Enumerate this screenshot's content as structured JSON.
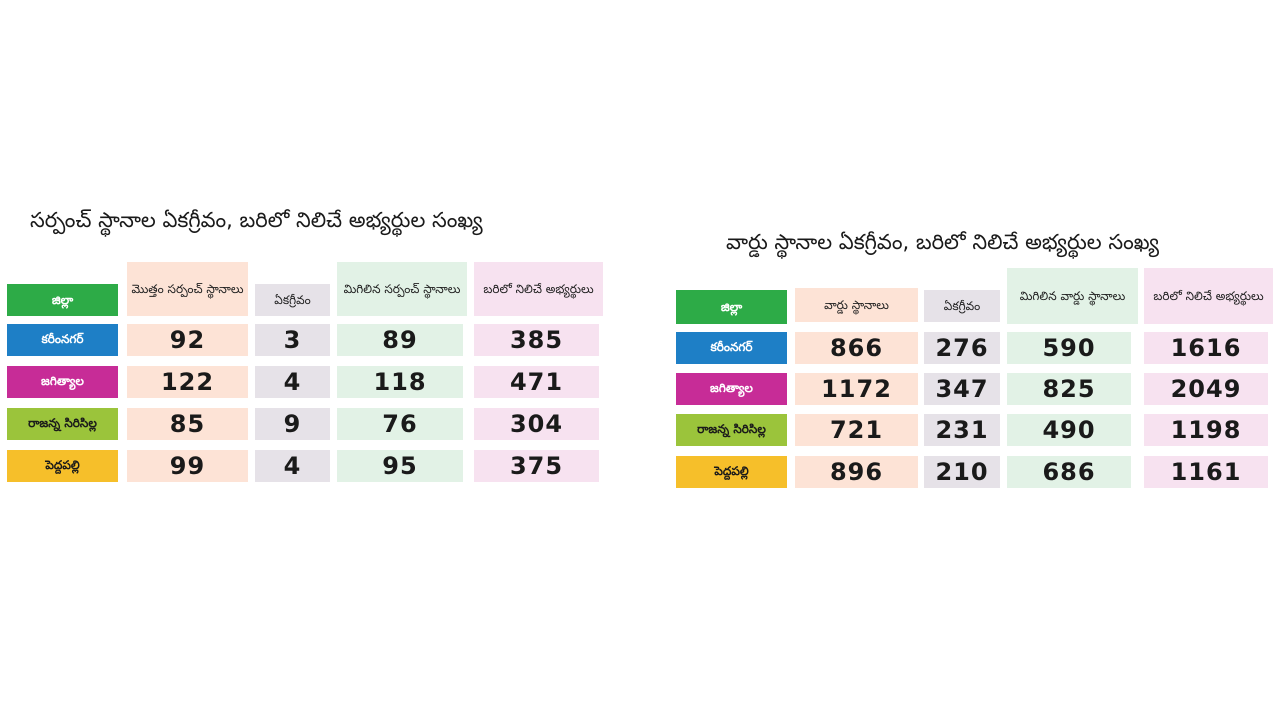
{
  "colors": {
    "district_header": "#2dab47",
    "districts": [
      "#1e7fc6",
      "#c72c97",
      "#9bc43b",
      "#f6bf2a"
    ],
    "col_total": "#fde3d6",
    "col_unanimous": "#e6e2e8",
    "col_remaining": "#e2f2e6",
    "col_candidates": "#f7e2f0"
  },
  "sarpanch": {
    "title": "సర్పంచ్ స్థానాల ఏకగ్రీవం, బరిలో నిలిచే అభ్యర్థుల సంఖ్య",
    "headers": {
      "district": "జిల్లా",
      "total": "మొత్తం సర్పంచ్ స్థానాలు",
      "unanimous": "ఏకగ్రీవం",
      "remaining": "మిగిలిన సర్పంచ్ స్థానాలు",
      "candidates": "బరిలో నిలిచే అభ్యర్థులు"
    },
    "rows": [
      {
        "district": "కరీంనగర్",
        "total": "92",
        "unanimous": "3",
        "remaining": "89",
        "candidates": "385"
      },
      {
        "district": "జగిత్యాల",
        "total": "122",
        "unanimous": "4",
        "remaining": "118",
        "candidates": "471"
      },
      {
        "district": "రాజన్న సిరిసిల్ల",
        "total": "85",
        "unanimous": "9",
        "remaining": "76",
        "candidates": "304"
      },
      {
        "district": "పెద్దపల్లి",
        "total": "99",
        "unanimous": "4",
        "remaining": "95",
        "candidates": "375"
      }
    ]
  },
  "ward": {
    "title": "వార్డు స్థానాల ఏకగ్రీవం, బరిలో నిలిచే అభ్యర్థుల సంఖ్య",
    "headers": {
      "district": "జిల్లా",
      "total": "వార్డు స్థానాలు",
      "unanimous": "ఏకగ్రీవం",
      "remaining": "మిగిలిన వార్డు స్థానాలు",
      "candidates": "బరిలో నిలిచే అభ్యర్థులు"
    },
    "rows": [
      {
        "district": "కరీంనగర్",
        "total": "866",
        "unanimous": "276",
        "remaining": "590",
        "candidates": "1616"
      },
      {
        "district": "జగిత్యాల",
        "total": "1172",
        "unanimous": "347",
        "remaining": "825",
        "candidates": "2049"
      },
      {
        "district": "రాజన్న సిరిసిల్ల",
        "total": "721",
        "unanimous": "231",
        "remaining": "490",
        "candidates": "1198"
      },
      {
        "district": "పెద్దపల్లి",
        "total": "896",
        "unanimous": "210",
        "remaining": "686",
        "candidates": "1161"
      }
    ]
  }
}
